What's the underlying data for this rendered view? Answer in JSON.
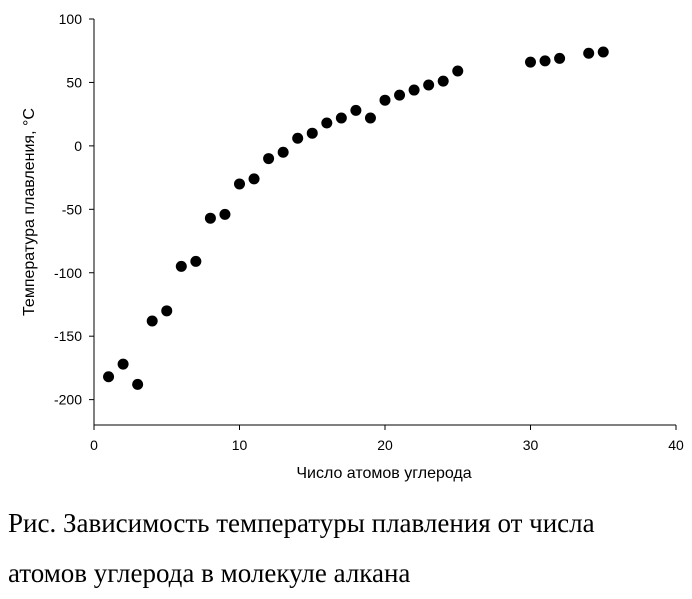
{
  "chart_data": {
    "type": "scatter",
    "xlabel": "Число атомов углерода",
    "ylabel": "Температура плавления, °C",
    "xlim": [
      0,
      40
    ],
    "ylim": [
      -220,
      100
    ],
    "xticks": [
      0,
      10,
      20,
      30,
      40
    ],
    "yticks": [
      100,
      50,
      0,
      -50,
      -100,
      -150,
      -200
    ],
    "grid": false,
    "point_color": "#000000",
    "points": [
      {
        "x": 1,
        "y": -182
      },
      {
        "x": 2,
        "y": -172
      },
      {
        "x": 3,
        "y": -188
      },
      {
        "x": 4,
        "y": -138
      },
      {
        "x": 5,
        "y": -130
      },
      {
        "x": 6,
        "y": -95
      },
      {
        "x": 7,
        "y": -91
      },
      {
        "x": 8,
        "y": -57
      },
      {
        "x": 9,
        "y": -54
      },
      {
        "x": 10,
        "y": -30
      },
      {
        "x": 11,
        "y": -26
      },
      {
        "x": 12,
        "y": -10
      },
      {
        "x": 13,
        "y": -5
      },
      {
        "x": 14,
        "y": 6
      },
      {
        "x": 15,
        "y": 10
      },
      {
        "x": 16,
        "y": 18
      },
      {
        "x": 17,
        "y": 22
      },
      {
        "x": 18,
        "y": 28
      },
      {
        "x": 19,
        "y": 22
      },
      {
        "x": 20,
        "y": 36
      },
      {
        "x": 21,
        "y": 40
      },
      {
        "x": 22,
        "y": 44
      },
      {
        "x": 23,
        "y": 48
      },
      {
        "x": 24,
        "y": 51
      },
      {
        "x": 25,
        "y": 59
      },
      {
        "x": 30,
        "y": 66
      },
      {
        "x": 31,
        "y": 67
      },
      {
        "x": 32,
        "y": 69
      },
      {
        "x": 34,
        "y": 73
      },
      {
        "x": 35,
        "y": 74
      }
    ]
  },
  "caption": {
    "line1": "Рис. Зависимость температуры плавления от числа",
    "line2": "атомов углерода в молекуле алкана"
  }
}
